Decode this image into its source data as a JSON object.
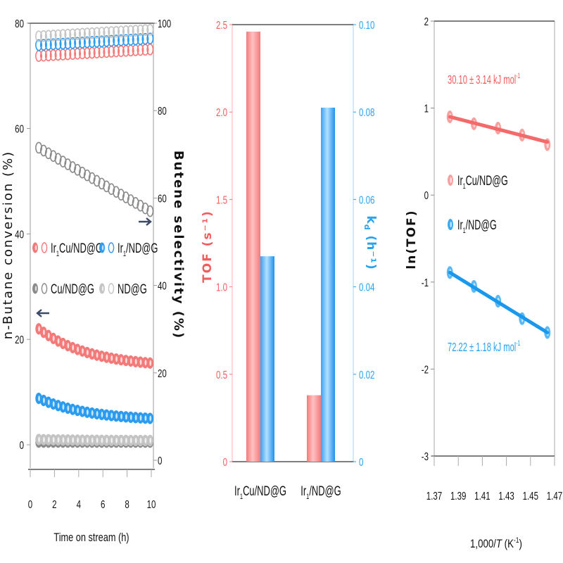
{
  "colors": {
    "red": "#f47a7a",
    "red_light": "#ffc2c2",
    "red_text": "#f25c5c",
    "blue": "#2c9cf0",
    "blue_light": "#b3e0ff",
    "blue_text": "#27a2ee",
    "dark_gray": "#8a8a8a",
    "light_gray": "#c4c4c4",
    "axis": "#555555",
    "arrow": "#3b4a66"
  },
  "chart_data": [
    {
      "type": "scatter",
      "panel": "left",
      "xlabel": "Time on stream (h)",
      "ylabel_left": "n-Butane conversion (%)",
      "ylabel_right": "Butene selectivity (%)",
      "xlim": [
        0,
        10
      ],
      "ylim_left": [
        -4.4,
        80
      ],
      "ylim_right": [
        0,
        100
      ],
      "x_ticks": [
        "0",
        "2",
        "4",
        "6",
        "8",
        "10"
      ],
      "y_ticks_left": [
        "0",
        "20",
        "40",
        "60",
        "80"
      ],
      "y_ticks_right": [
        "0",
        "20",
        "40",
        "60",
        "80",
        "100"
      ],
      "legend": [
        {
          "label_main": "Ir",
          "label_sub": "1",
          "label_rest": "Cu/ND@G",
          "color": "red"
        },
        {
          "label_main": "Ir",
          "label_sub": "1",
          "label_rest": "/ND@G",
          "color": "blue"
        },
        {
          "label_main": "Cu/ND@G",
          "label_sub": "",
          "label_rest": "",
          "color": "dark_gray"
        },
        {
          "label_main": "ND@G",
          "label_sub": "",
          "label_rest": "",
          "color": "light_gray"
        }
      ],
      "legend_placement": "center-left",
      "x_start": 0.7,
      "x_end": 9.9,
      "n_points": 24,
      "conversion_series": [
        {
          "name": "Ir1Cu/ND@G conversion",
          "color": "red",
          "start": 22,
          "end": 15.5,
          "axis": "left",
          "filled": true
        },
        {
          "name": "Ir1/ND@G conversion",
          "color": "blue",
          "start": 8.8,
          "end": 5.0,
          "axis": "left",
          "filled": true
        },
        {
          "name": "Cu/ND@G conversion",
          "color": "dark_gray",
          "start": 0.5,
          "end": 0.5,
          "axis": "left",
          "filled": true
        },
        {
          "name": "ND@G conversion",
          "color": "light_gray",
          "start": 1.0,
          "end": 0.8,
          "axis": "left",
          "filled": true
        }
      ],
      "selectivity_series": [
        {
          "name": "Ir1Cu/ND@G selectivity",
          "color": "red",
          "start": 92.5,
          "end": 94,
          "axis": "right",
          "filled": false
        },
        {
          "name": "Ir1/ND@G selectivity",
          "color": "blue",
          "start": 95,
          "end": 96.5,
          "axis": "right",
          "filled": false
        },
        {
          "name": "Cu/ND@G selectivity",
          "color": "dark_gray",
          "start": 71.5,
          "end": 57,
          "axis": "right",
          "filled": false
        },
        {
          "name": "ND@G selectivity",
          "color": "light_gray",
          "start": 97,
          "end": 98.5,
          "axis": "right",
          "filled": false
        }
      ],
      "annotations": [
        {
          "type": "arrow",
          "direction": "left",
          "points_to": "left axis"
        },
        {
          "type": "arrow",
          "direction": "right",
          "points_to": "right axis"
        }
      ]
    },
    {
      "type": "bar",
      "panel": "middle",
      "categories": [
        {
          "main": "Ir",
          "sub": "1",
          "rest": "Cu/ND@G"
        },
        {
          "main": "Ir",
          "sub": "1",
          "rest": "/ND@G"
        }
      ],
      "series": [
        {
          "name": "TOF",
          "axis": "left",
          "color": "red",
          "values": [
            2.46,
            0.38
          ]
        },
        {
          "name": "kd",
          "axis": "right",
          "color": "blue",
          "values": [
            0.047,
            0.081
          ]
        }
      ],
      "ylabel_left": "TOF (s⁻¹)",
      "ylabel_right_main": "k",
      "ylabel_right_sub": "d",
      "ylabel_right_rest": " (h⁻¹)",
      "ylim_left": [
        0,
        2.5
      ],
      "ylim_right": [
        0,
        0.1
      ],
      "y_ticks_left": [
        "0",
        "0.5",
        "1.0",
        "1.5",
        "2.0",
        "2.5"
      ],
      "y_ticks_right": [
        "0",
        "0.02",
        "0.04",
        "0.06",
        "0.08",
        "0.10"
      ]
    },
    {
      "type": "line",
      "panel": "right",
      "xlabel_pre": "1,000/",
      "xlabel_italic": "T",
      "xlabel_post": " (K",
      "xlabel_sup": "-1",
      "xlabel_end": ")",
      "ylabel": "ln(TOF)",
      "xlim": [
        1.37,
        1.47
      ],
      "ylim": [
        -3,
        2
      ],
      "x_ticks": [
        "1.37",
        "1.39",
        "1.41",
        "1.43",
        "1.45",
        "1.47"
      ],
      "y_ticks": [
        "-3",
        "-2",
        "-1",
        "0",
        "1",
        "2"
      ],
      "series": [
        {
          "name": "Ir1Cu/ND@G",
          "color": "red",
          "x": [
            1.383,
            1.403,
            1.423,
            1.443,
            1.464
          ],
          "y": [
            0.9,
            0.82,
            0.77,
            0.69,
            0.58
          ],
          "fit": [
            [
              1.383,
              0.9
            ],
            [
              1.464,
              0.61
            ]
          ]
        },
        {
          "name": "Ir1/ND@G",
          "color": "blue",
          "x": [
            1.383,
            1.403,
            1.423,
            1.443,
            1.464
          ],
          "y": [
            -0.89,
            -1.05,
            -1.22,
            -1.42,
            -1.58
          ],
          "fit": [
            [
              1.383,
              -0.89
            ],
            [
              1.464,
              -1.58
            ]
          ]
        }
      ],
      "legend": [
        {
          "main": "Ir",
          "sub": "1",
          "rest": "Cu/ND@G",
          "color": "red"
        },
        {
          "main": "Ir",
          "sub": "1",
          "rest": "/ND@G",
          "color": "blue"
        }
      ],
      "annotations": [
        {
          "text_main": "30.10 ± 3.14 kJ mol",
          "text_sup": "-1",
          "color": "red"
        },
        {
          "text_main": "72.22 ± 1.18 kJ mol",
          "text_sup": "-1",
          "color": "blue"
        }
      ]
    }
  ]
}
